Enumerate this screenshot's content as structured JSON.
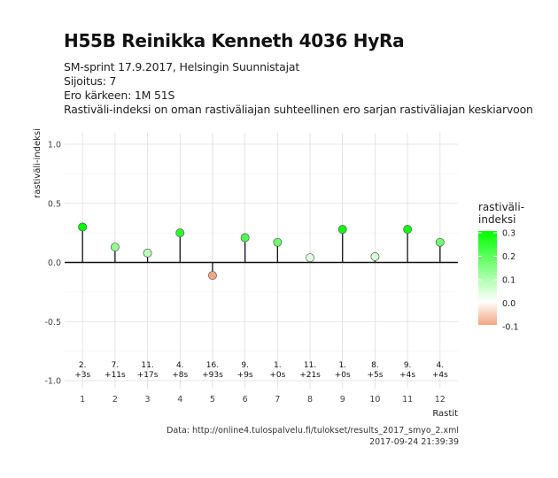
{
  "header": {
    "title": "H55B Reinikka Kenneth 4036 HyRa",
    "subtitle_lines": [
      "SM-sprint 17.9.2017, Helsingin Suunnistajat",
      "Sijoitus: 7",
      "Ero kärkeen: 1M 51S",
      "Rastiväli-indeksi on oman rastiväliajan suhteellinen ero sarjan rastiväliajan keskiarvoon"
    ]
  },
  "caption": {
    "source": "Data: http://online4.tulospalvelu.fi/tulokset/results_2017_smyo_2.xml",
    "timestamp": "2017-09-24 21:39:39"
  },
  "chart_data": {
    "type": "lollipop",
    "xlabel": "Rastit",
    "ylabel": "rastiväli-indeksi",
    "ylim": [
      -1.0,
      1.0
    ],
    "yticks": [
      "1.0",
      "0.5",
      "0.0",
      "-0.5",
      "-1.0"
    ],
    "grid": true,
    "x": [
      1,
      2,
      3,
      4,
      5,
      6,
      7,
      8,
      9,
      10,
      11,
      12
    ],
    "values": [
      0.3,
      0.13,
      0.08,
      0.25,
      -0.11,
      0.21,
      0.17,
      0.04,
      0.28,
      0.05,
      0.28,
      0.17
    ],
    "ranks": [
      "2.",
      "7.",
      "11.",
      "4.",
      "16.",
      "9.",
      "1.",
      "11.",
      "1.",
      "8.",
      "9.",
      "4."
    ],
    "diffs": [
      "+3s",
      "+11s",
      "+17s",
      "+8s",
      "+93s",
      "+9s",
      "+0s",
      "+21s",
      "+0s",
      "+5s",
      "+4s",
      "+4s"
    ],
    "legend": {
      "title_lines": [
        "rastiväli-",
        "indeksi"
      ],
      "labels": [
        "0.3",
        "0.2",
        "0.1",
        "0.0",
        "-0.1"
      ],
      "range": [
        -0.1,
        0.3
      ],
      "placement": "right",
      "colors": {
        "high": "#00ff00",
        "mid": "#ffffff",
        "low": "#f4a582"
      }
    }
  }
}
